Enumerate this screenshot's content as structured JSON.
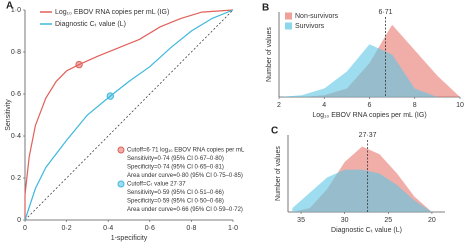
{
  "chart_data": [
    {
      "type": "line",
      "panel": "A",
      "xlabel": "1-specificity",
      "ylabel": "Sensitivity",
      "xlim": [
        0,
        1
      ],
      "ylim": [
        0,
        1
      ],
      "xticks": [
        0,
        {
          "value": 0.2,
          "label": "0·2"
        },
        {
          "value": 0.4,
          "label": "0·4"
        },
        {
          "value": 0.6,
          "label": "0·6"
        },
        {
          "value": 0.8,
          "label": "0·8"
        },
        {
          "value": 1,
          "label": "1·0"
        }
      ],
      "yticks": [
        0,
        {
          "value": 0.2,
          "label": "0·2"
        },
        {
          "value": 0.4,
          "label": "0·4"
        },
        {
          "value": 0.6,
          "label": "0·6"
        },
        {
          "value": 0.8,
          "label": "0·8"
        },
        {
          "value": 1,
          "label": "1·0"
        }
      ],
      "series": [
        {
          "name": "Log₁₀ EBOV RNA copies per mL (IG)",
          "color": "#e0605a",
          "x": [
            0,
            0,
            0.02,
            0.05,
            0.1,
            0.15,
            0.2,
            0.26,
            0.35,
            0.45,
            0.55,
            0.65,
            0.75,
            0.85,
            1
          ],
          "values": [
            0,
            0.12,
            0.3,
            0.45,
            0.58,
            0.66,
            0.71,
            0.74,
            0.78,
            0.82,
            0.86,
            0.92,
            0.96,
            0.99,
            1
          ]
        },
        {
          "name": "Diagnostic Cₜ value (L)",
          "color": "#3fb8dc",
          "x": [
            0,
            0.05,
            0.1,
            0.2,
            0.3,
            0.41,
            0.5,
            0.6,
            0.7,
            0.8,
            0.9,
            1
          ],
          "values": [
            0,
            0.15,
            0.25,
            0.38,
            0.5,
            0.59,
            0.66,
            0.73,
            0.82,
            0.9,
            0.96,
            1
          ]
        }
      ],
      "markers": [
        {
          "x": 0.26,
          "y": 0.74
        },
        {
          "x": 0.41,
          "y": 0.59
        }
      ],
      "annotations": [
        [
          "Cutoff=6·71 log₁₀ EBOV RNA copies per mL",
          "Sensitivity=0·74 (95% CI 0·67–0·80)",
          "Specificity=0·74 (95% CI 0·65–0·81)",
          "Area under curve=0·80 (95% CI 0·75–0·85)"
        ],
        [
          "Cutoff=Cₜ value 27·37",
          "Sensitivity=0·59 (95% CI 0·51–0·66)",
          "Specificity=0·59 (95% CI 0·50–0·68)",
          "Area under curve=0·66 (95% CI 0·59–0·72)"
        ]
      ]
    },
    {
      "type": "area",
      "panel": "B",
      "xlabel": "Log₁₀ EBOV RNA copies per mL (IG)",
      "ylabel": "Number of values",
      "xlim": [
        2,
        10
      ],
      "ylim": [
        0,
        100
      ],
      "xticks": [
        2,
        4,
        6,
        8,
        10
      ],
      "x": [
        2,
        3,
        4,
        5,
        6,
        7,
        8,
        9,
        10
      ],
      "series": [
        {
          "name": "Non-survivors",
          "color": "#e8786e",
          "values": [
            0,
            0,
            2,
            10,
            40,
            85,
            55,
            25,
            0
          ]
        },
        {
          "name": "Survivors",
          "color": "#5cc6e4",
          "values": [
            0,
            2,
            10,
            30,
            62,
            50,
            10,
            0,
            0
          ]
        }
      ],
      "cutoff": {
        "value": 6.71,
        "label": "6·71"
      }
    },
    {
      "type": "area",
      "panel": "C",
      "xlabel": "Diagnostic Cₜ value (L)",
      "ylabel": "Number of values",
      "xlim": [
        36.5,
        18.5
      ],
      "ylim": [
        0,
        100
      ],
      "xticks": [
        35,
        30,
        25,
        20
      ],
      "x": [
        36,
        34,
        32,
        30,
        28,
        26,
        24,
        22,
        20
      ],
      "series": [
        {
          "color": "#e8786e",
          "values": [
            0,
            5,
            30,
            65,
            85,
            75,
            50,
            20,
            0
          ]
        },
        {
          "color": "#5cc6e4",
          "values": [
            5,
            25,
            45,
            55,
            55,
            50,
            35,
            15,
            0
          ]
        }
      ],
      "cutoff": {
        "value": 27.37,
        "label": "27·37"
      }
    }
  ]
}
